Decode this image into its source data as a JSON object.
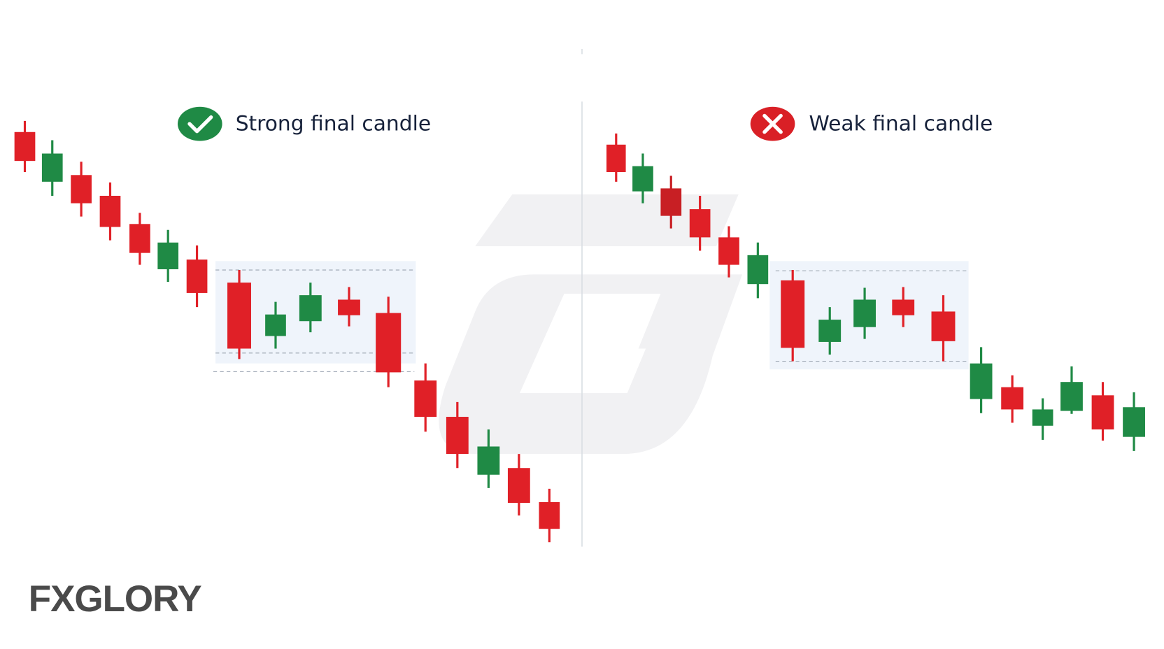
{
  "panels": [
    {
      "label": "Strong final candle"
    },
    {
      "label": "Weak final candle"
    }
  ],
  "logo": "FXGLORY"
}
